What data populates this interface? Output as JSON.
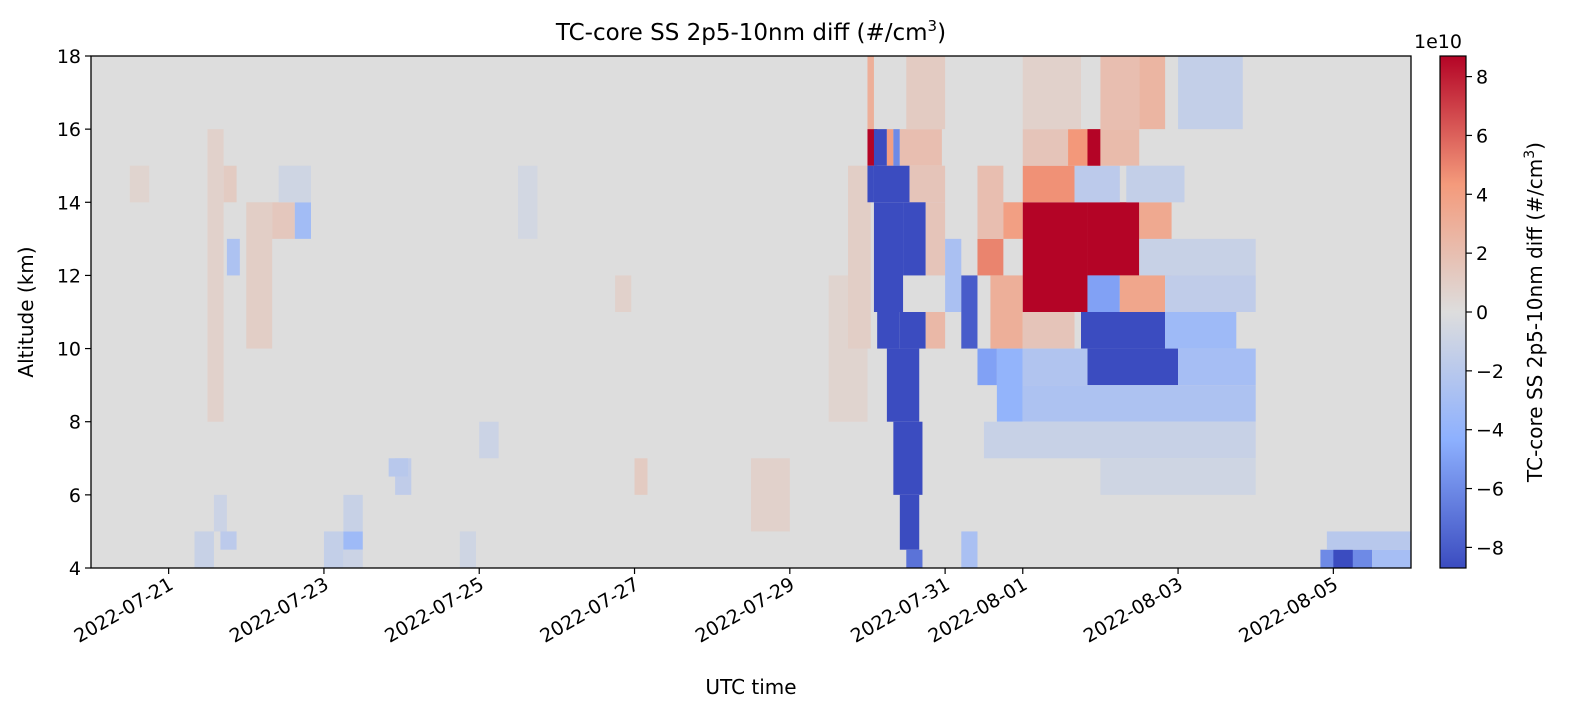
{
  "chart_data": {
    "type": "heatmap",
    "title": "TC-core SS 2p5-10nm diff (#/cm",
    "title_superscript": "3",
    "title_suffix": ")",
    "xlabel": "UTC time",
    "ylabel": "Altitude (km)",
    "colorbar_label": "TC-core SS 2p5-10nm diff (#/cm",
    "colorbar_label_superscript": "3",
    "colorbar_label_suffix": ")",
    "colorbar_offset_text": "1e10",
    "colorbar_range": [
      -8.7,
      8.7
    ],
    "colorbar_ticks": [
      "8",
      "6",
      "4",
      "2",
      "0",
      "−2",
      "−4",
      "−6",
      "−8"
    ],
    "colorbar_tick_values": [
      8,
      6,
      4,
      2,
      0,
      -2,
      -4,
      -6,
      -8
    ],
    "colormap": "coolwarm",
    "colormap_low": "#3b4cc0",
    "colormap_mid": "#dddddd",
    "colormap_high": "#b40426",
    "ylim": [
      4,
      18
    ],
    "yticks": [
      4,
      6,
      8,
      10,
      12,
      14,
      16,
      18
    ],
    "ytick_labels": [
      "4",
      "6",
      "8",
      "10",
      "12",
      "14",
      "16",
      "18"
    ],
    "xlim": [
      "2022-07-20",
      "2022-08-06"
    ],
    "xticks": [
      "2022-07-21",
      "2022-07-23",
      "2022-07-25",
      "2022-07-27",
      "2022-07-29",
      "2022-07-31",
      "2022-08-01",
      "2022-08-03",
      "2022-08-05"
    ],
    "xtick_labels": [
      "2022-07-21",
      "2022-07-23",
      "2022-07-25",
      "2022-07-27",
      "2022-07-29",
      "2022-07-31",
      "2022-08-01",
      "2022-08-03",
      "2022-08-05"
    ],
    "altitude_bins_km": [
      4,
      5,
      6,
      7,
      8,
      9,
      10,
      11,
      12,
      13,
      14,
      15,
      16,
      17,
      18
    ],
    "cells": [
      {
        "t0": "2022-07-20 12:00",
        "t1": "2022-07-20 18:00",
        "z0": 14,
        "z1": 15,
        "v": 0.6
      },
      {
        "t0": "2022-07-21 12:00",
        "t1": "2022-07-21 17:00",
        "z0": 8,
        "z1": 16,
        "v": 0.8
      },
      {
        "t0": "2022-07-21 17:00",
        "t1": "2022-07-21 21:00",
        "z0": 14,
        "z1": 15,
        "v": 1.2
      },
      {
        "t0": "2022-07-21 08:00",
        "t1": "2022-07-21 14:00",
        "z0": 4,
        "z1": 5,
        "v": -1.2
      },
      {
        "t0": "2022-07-21 14:00",
        "t1": "2022-07-21 18:00",
        "z0": 6,
        "z1": 5,
        "v": -1.0
      },
      {
        "t0": "2022-07-21 16:00",
        "t1": "2022-07-21 21:00",
        "z0": 4.5,
        "z1": 5,
        "v": -1.8
      },
      {
        "t0": "2022-07-21 18:00",
        "t1": "2022-07-21 22:00",
        "z0": 12,
        "z1": 13,
        "v": -2.6
      },
      {
        "t0": "2022-07-22 00:00",
        "t1": "2022-07-22 08:00",
        "z0": 10,
        "z1": 14,
        "v": 1.0
      },
      {
        "t0": "2022-07-22 08:00",
        "t1": "2022-07-22 15:00",
        "z0": 13,
        "z1": 14,
        "v": 1.4
      },
      {
        "t0": "2022-07-22 15:00",
        "t1": "2022-07-22 20:00",
        "z0": 13,
        "z1": 14,
        "v": -3.2
      },
      {
        "t0": "2022-07-22 10:00",
        "t1": "2022-07-22 20:00",
        "z0": 14,
        "z1": 15,
        "v": -0.8
      },
      {
        "t0": "2022-07-23 00:00",
        "t1": "2022-07-23 06:00",
        "z0": 4,
        "z1": 5,
        "v": -1.4
      },
      {
        "t0": "2022-07-23 06:00",
        "t1": "2022-07-23 12:00",
        "z0": 4.5,
        "z1": 5,
        "v": -3.4
      },
      {
        "t0": "2022-07-23 06:00",
        "t1": "2022-07-23 12:00",
        "z0": 5,
        "z1": 6,
        "v": -1.2
      },
      {
        "t0": "2022-07-23 06:00",
        "t1": "2022-07-23 12:00",
        "z0": 4,
        "z1": 4.5,
        "v": -1.0
      },
      {
        "t0": "2022-07-23 22:00",
        "t1": "2022-07-24 03:00",
        "z0": 6,
        "z1": 7,
        "v": -1.6
      },
      {
        "t0": "2022-07-23 20:00",
        "t1": "2022-07-24 02:00",
        "z0": 6.5,
        "z1": 7,
        "v": -2.0
      },
      {
        "t0": "2022-07-24 18:00",
        "t1": "2022-07-24 23:00",
        "z0": 4,
        "z1": 5,
        "v": -0.8
      },
      {
        "t0": "2022-07-25 00:00",
        "t1": "2022-07-25 06:00",
        "z0": 7,
        "z1": 8,
        "v": -1.0
      },
      {
        "t0": "2022-07-25 12:00",
        "t1": "2022-07-25 18:00",
        "z0": 13,
        "z1": 15,
        "v": -0.6
      },
      {
        "t0": "2022-07-26 18:00",
        "t1": "2022-07-26 23:00",
        "z0": 11,
        "z1": 12,
        "v": 0.8
      },
      {
        "t0": "2022-07-27 00:00",
        "t1": "2022-07-27 04:00",
        "z0": 6,
        "z1": 7,
        "v": 1.2
      },
      {
        "t0": "2022-07-28 12:00",
        "t1": "2022-07-29 00:00",
        "z0": 5,
        "z1": 7,
        "v": 0.8
      },
      {
        "t0": "2022-07-29 12:00",
        "t1": "2022-07-30 00:00",
        "z0": 8,
        "z1": 12,
        "v": 0.6
      },
      {
        "t0": "2022-07-29 18:00",
        "t1": "2022-07-30 01:00",
        "z0": 10,
        "z1": 15,
        "v": 1.0
      },
      {
        "t0": "2022-07-30 00:00",
        "t1": "2022-07-30 02:00",
        "z0": 16,
        "z1": 18,
        "v": 3.0
      },
      {
        "t0": "2022-07-30 00:00",
        "t1": "2022-07-30 03:00",
        "z0": 15,
        "z1": 16,
        "v": 8.7
      },
      {
        "t0": "2022-07-30 00:00",
        "t1": "2022-07-30 02:00",
        "z0": 14,
        "z1": 15,
        "v": -8.7
      },
      {
        "t0": "2022-07-30 02:00",
        "t1": "2022-07-30 06:00",
        "z0": 15,
        "z1": 16,
        "v": -8.7
      },
      {
        "t0": "2022-07-30 06:00",
        "t1": "2022-07-30 08:00",
        "z0": 15,
        "z1": 16,
        "v": 4.0
      },
      {
        "t0": "2022-07-30 08:00",
        "t1": "2022-07-30 10:00",
        "z0": 15,
        "z1": 16,
        "v": -6.0
      },
      {
        "t0": "2022-07-30 10:00",
        "t1": "2022-07-30 23:00",
        "z0": 15,
        "z1": 16,
        "v": 2.0
      },
      {
        "t0": "2022-07-30 02:00",
        "t1": "2022-07-30 13:00",
        "z0": 14,
        "z1": 15,
        "v": -8.7
      },
      {
        "t0": "2022-07-30 13:00",
        "t1": "2022-07-31 00:00",
        "z0": 14,
        "z1": 15,
        "v": 1.6
      },
      {
        "t0": "2022-07-30 02:00",
        "t1": "2022-07-30 11:00",
        "z0": 11,
        "z1": 14,
        "v": -8.7
      },
      {
        "t0": "2022-07-30 11:00",
        "t1": "2022-07-30 18:00",
        "z0": 12,
        "z1": 14,
        "v": -8.7
      },
      {
        "t0": "2022-07-30 18:00",
        "t1": "2022-07-31 00:00",
        "z0": 12,
        "z1": 14,
        "v": 1.6
      },
      {
        "t0": "2022-07-30 03:00",
        "t1": "2022-07-30 10:00",
        "z0": 10,
        "z1": 11,
        "v": -8.7
      },
      {
        "t0": "2022-07-30 10:00",
        "t1": "2022-07-30 18:00",
        "z0": 10,
        "z1": 11,
        "v": -8.7
      },
      {
        "t0": "2022-07-30 18:00",
        "t1": "2022-07-31 00:00",
        "z0": 10,
        "z1": 11,
        "v": 2.4
      },
      {
        "t0": "2022-07-30 06:00",
        "t1": "2022-07-30 16:00",
        "z0": 8,
        "z1": 10,
        "v": -8.7
      },
      {
        "t0": "2022-07-30 08:00",
        "t1": "2022-07-30 17:00",
        "z0": 6,
        "z1": 8,
        "v": -8.7
      },
      {
        "t0": "2022-07-30 10:00",
        "t1": "2022-07-30 16:00",
        "z0": 4.5,
        "z1": 6,
        "v": -8.7
      },
      {
        "t0": "2022-07-30 12:00",
        "t1": "2022-07-30 17:00",
        "z0": 4,
        "z1": 4.5,
        "v": -7.0
      },
      {
        "t0": "2022-07-31 00:00",
        "t1": "2022-07-31 05:00",
        "z0": 11,
        "z1": 13,
        "v": -2.8
      },
      {
        "t0": "2022-07-31 05:00",
        "t1": "2022-07-31 10:00",
        "z0": 10,
        "z1": 12,
        "v": -8.0
      },
      {
        "t0": "2022-07-31 10:00",
        "t1": "2022-07-31 16:00",
        "z0": 9,
        "z1": 10,
        "v": -5.0
      },
      {
        "t0": "2022-07-31 10:00",
        "t1": "2022-07-31 18:00",
        "z0": 12,
        "z1": 13,
        "v": 5.0
      },
      {
        "t0": "2022-07-31 14:00",
        "t1": "2022-08-01 00:00",
        "z0": 10,
        "z1": 12,
        "v": 3.0
      },
      {
        "t0": "2022-07-31 16:00",
        "t1": "2022-08-01 00:00",
        "z0": 8,
        "z1": 10,
        "v": -4.0
      },
      {
        "t0": "2022-07-31 10:00",
        "t1": "2022-07-31 18:00",
        "z0": 13,
        "z1": 15,
        "v": 2.0
      },
      {
        "t0": "2022-07-31 18:00",
        "t1": "2022-08-01 00:00",
        "z0": 13,
        "z1": 14,
        "v": 4.0
      },
      {
        "t0": "2022-07-31 05:00",
        "t1": "2022-07-31 10:00",
        "z0": 4,
        "z1": 5,
        "v": -2.8
      },
      {
        "t0": "2022-08-01 00:00",
        "t1": "2022-08-01 20:00",
        "z0": 11,
        "z1": 14,
        "v": 8.7
      },
      {
        "t0": "2022-08-01 20:00",
        "t1": "2022-08-02 12:00",
        "z0": 12,
        "z1": 14,
        "v": 8.7
      },
      {
        "t0": "2022-08-02 12:00",
        "t1": "2022-08-02 22:00",
        "z0": 12,
        "z1": 14,
        "v": 3.4
      },
      {
        "t0": "2022-08-01 00:00",
        "t1": "2022-08-01 16:00",
        "z0": 14,
        "z1": 15,
        "v": 4.6
      },
      {
        "t0": "2022-08-01 16:00",
        "t1": "2022-08-02 06:00",
        "z0": 14,
        "z1": 15,
        "v": -1.8
      },
      {
        "t0": "2022-08-01 00:00",
        "t1": "2022-08-01 14:00",
        "z0": 15,
        "z1": 16,
        "v": 1.6
      },
      {
        "t0": "2022-08-01 14:00",
        "t1": "2022-08-02 00:00",
        "z0": 15,
        "z1": 16,
        "v": 4.4
      },
      {
        "t0": "2022-08-01 20:00",
        "t1": "2022-08-02 00:00",
        "z0": 15,
        "z1": 16,
        "v": 8.7
      },
      {
        "t0": "2022-08-02 00:00",
        "t1": "2022-08-02 12:00",
        "z0": 15,
        "z1": 16,
        "v": 2.2
      },
      {
        "t0": "2022-08-01 00:00",
        "t1": "2022-08-01 16:00",
        "z0": 10,
        "z1": 11,
        "v": 1.6
      },
      {
        "t0": "2022-08-01 20:00",
        "t1": "2022-08-02 06:00",
        "z0": 11,
        "z1": 12,
        "v": -5.0
      },
      {
        "t0": "2022-08-02 06:00",
        "t1": "2022-08-02 20:00",
        "z0": 11,
        "z1": 12,
        "v": 3.6
      },
      {
        "t0": "2022-08-01 18:00",
        "t1": "2022-08-02 20:00",
        "z0": 10,
        "z1": 11,
        "v": -8.7
      },
      {
        "t0": "2022-08-02 20:00",
        "t1": "2022-08-03 18:00",
        "z0": 10,
        "z1": 11,
        "v": -3.4
      },
      {
        "t0": "2022-08-01 20:00",
        "t1": "2022-08-03 00:00",
        "z0": 9,
        "z1": 10,
        "v": -8.7
      },
      {
        "t0": "2022-08-03 00:00",
        "t1": "2022-08-04 00:00",
        "z0": 9,
        "z1": 10,
        "v": -3.0
      },
      {
        "t0": "2022-08-01 00:00",
        "t1": "2022-08-01 20:00",
        "z0": 9,
        "z1": 10,
        "v": -2.4
      },
      {
        "t0": "2022-08-01 00:00",
        "t1": "2022-08-04 00:00",
        "z0": 8,
        "z1": 9,
        "v": -2.6
      },
      {
        "t0": "2022-07-31 12:00",
        "t1": "2022-08-04 00:00",
        "z0": 7,
        "z1": 8,
        "v": -1.2
      },
      {
        "t0": "2022-08-02 00:00",
        "t1": "2022-08-04 00:00",
        "z0": 6,
        "z1": 7,
        "v": -0.8
      },
      {
        "t0": "2022-08-02 12:00",
        "t1": "2022-08-04 00:00",
        "z0": 12,
        "z1": 13,
        "v": -1.2
      },
      {
        "t0": "2022-08-02 20:00",
        "t1": "2022-08-04 00:00",
        "z0": 11,
        "z1": 12,
        "v": -1.6
      },
      {
        "t0": "2022-08-02 08:00",
        "t1": "2022-08-03 02:00",
        "z0": 14,
        "z1": 15,
        "v": -1.4
      },
      {
        "t0": "2022-08-02 00:00",
        "t1": "2022-08-02 12:00",
        "z0": 16,
        "z1": 18,
        "v": 2.0
      },
      {
        "t0": "2022-08-02 12:00",
        "t1": "2022-08-02 20:00",
        "z0": 16,
        "z1": 18,
        "v": 2.6
      },
      {
        "t0": "2022-08-03 00:00",
        "t1": "2022-08-03 20:00",
        "z0": 16,
        "z1": 18,
        "v": -1.4
      },
      {
        "t0": "2022-08-01 00:00",
        "t1": "2022-08-01 18:00",
        "z0": 16,
        "z1": 18,
        "v": 0.8
      },
      {
        "t0": "2022-07-30 12:00",
        "t1": "2022-07-31 00:00",
        "z0": 16,
        "z1": 18,
        "v": 1.2
      },
      {
        "t0": "2022-08-04 20:00",
        "t1": "2022-08-05 12:00",
        "z0": 4,
        "z1": 4.5,
        "v": -6.0
      },
      {
        "t0": "2022-08-05 00:00",
        "t1": "2022-08-05 06:00",
        "z0": 4,
        "z1": 4.5,
        "v": -8.7
      },
      {
        "t0": "2022-08-05 12:00",
        "t1": "2022-08-06 00:00",
        "z0": 4,
        "z1": 4.5,
        "v": -3.0
      },
      {
        "t0": "2022-08-04 22:00",
        "t1": "2022-08-06 00:00",
        "z0": 4.5,
        "z1": 5,
        "v": -2.0
      }
    ]
  }
}
